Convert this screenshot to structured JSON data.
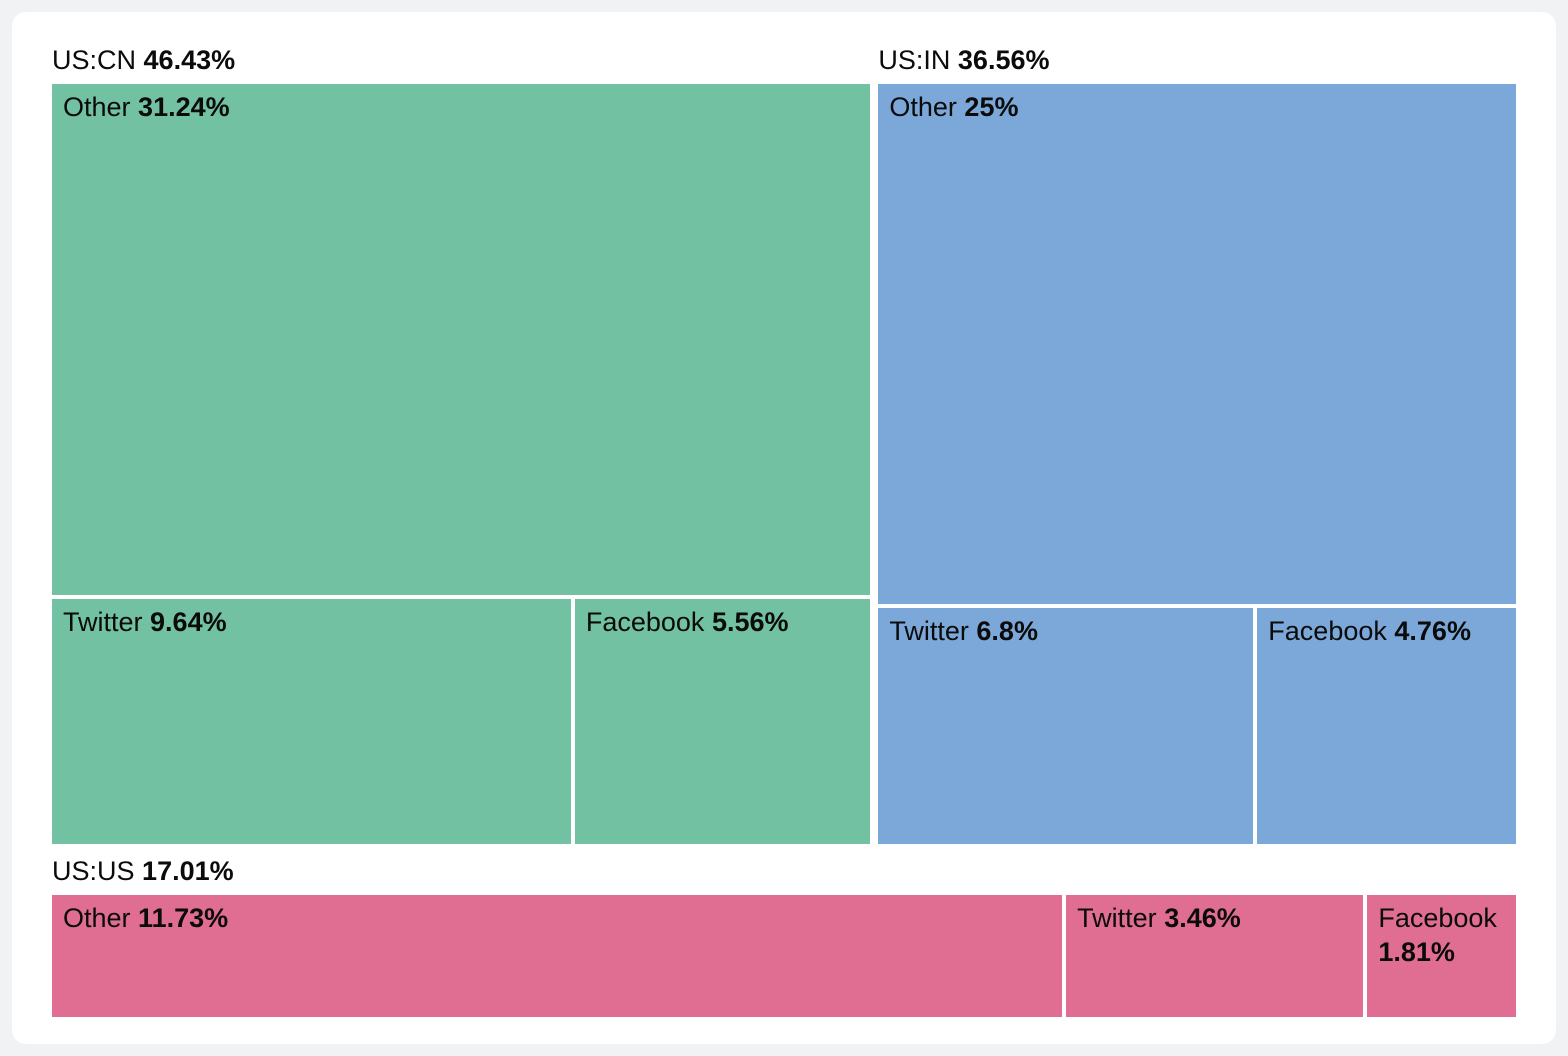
{
  "chart_data": {
    "type": "treemap",
    "title": "",
    "unit": "%",
    "legend": false,
    "layout_hint": "US:CN and US:IN side-by-side on top strip, US:US full-width bottom strip; within each group 'Other' on top, Twitter and Facebook below",
    "groups": [
      {
        "name": "US:CN",
        "value": 46.43,
        "display": "46.43%",
        "color": "#73c1a3",
        "children": [
          {
            "name": "Other",
            "value": 31.24,
            "display": "31.24%"
          },
          {
            "name": "Twitter",
            "value": 9.64,
            "display": "9.64%"
          },
          {
            "name": "Facebook",
            "value": 5.56,
            "display": "5.56%"
          }
        ]
      },
      {
        "name": "US:IN",
        "value": 36.56,
        "display": "36.56%",
        "color": "#7ba8d9",
        "children": [
          {
            "name": "Other",
            "value": 25,
            "display": "25%"
          },
          {
            "name": "Twitter",
            "value": 6.8,
            "display": "6.8%"
          },
          {
            "name": "Facebook",
            "value": 4.76,
            "display": "4.76%"
          }
        ]
      },
      {
        "name": "US:US",
        "value": 17.01,
        "display": "17.01%",
        "color": "#e06e92",
        "children": [
          {
            "name": "Other",
            "value": 11.73,
            "display": "11.73%"
          },
          {
            "name": "Twitter",
            "value": 3.46,
            "display": "3.46%"
          },
          {
            "name": "Facebook",
            "value": 1.81,
            "display": "1.81%"
          }
        ]
      }
    ]
  }
}
